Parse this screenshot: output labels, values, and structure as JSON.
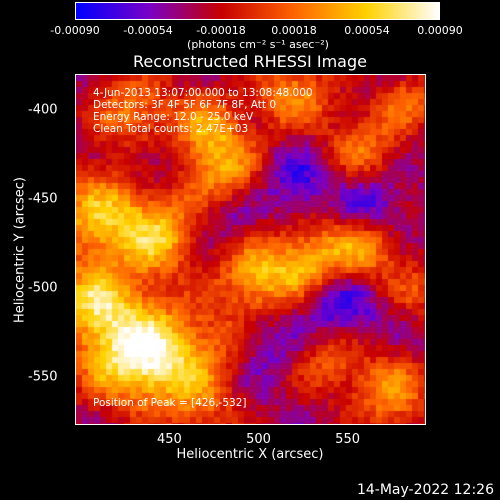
{
  "chart_data": {
    "type": "heatmap",
    "title": "Reconstructed RHESSI Image",
    "colorbar": {
      "ticks": [
        "-0.00090",
        "-0.00054",
        "-0.00018",
        "0.00018",
        "0.00054",
        "0.00090"
      ],
      "range": [
        -0.0009,
        0.0009
      ],
      "colormap": [
        "#0000ff",
        "#7a00c8",
        "#c80000",
        "#ff6400",
        "#ffd200",
        "#ffffff"
      ]
    },
    "units_label": "(photons cm⁻² s⁻¹ asec⁻²)",
    "xlabel": "Heliocentric X (arcsec)",
    "ylabel": "Heliocentric Y (arcsec)",
    "xticks": [
      "450",
      "500",
      "550"
    ],
    "yticks": [
      "-400",
      "-450",
      "-500",
      "-550"
    ],
    "xlim": [
      397,
      594
    ],
    "ylim": [
      -577,
      -380
    ],
    "annotations": [
      "4-Jun-2013 13:07:00.000 to 13:08:48.000",
      "Detectors: 3F 4F 5F 6F 7F 8F, Att 0",
      "Energy Range: 12.0 - 25.0 keV",
      "Clean     Total counts: 2.47E+03"
    ],
    "peak_text": "Position of Peak = [426,-532]",
    "peak": [
      426,
      -532
    ]
  },
  "timestamp": "14-May-2022 12:26"
}
